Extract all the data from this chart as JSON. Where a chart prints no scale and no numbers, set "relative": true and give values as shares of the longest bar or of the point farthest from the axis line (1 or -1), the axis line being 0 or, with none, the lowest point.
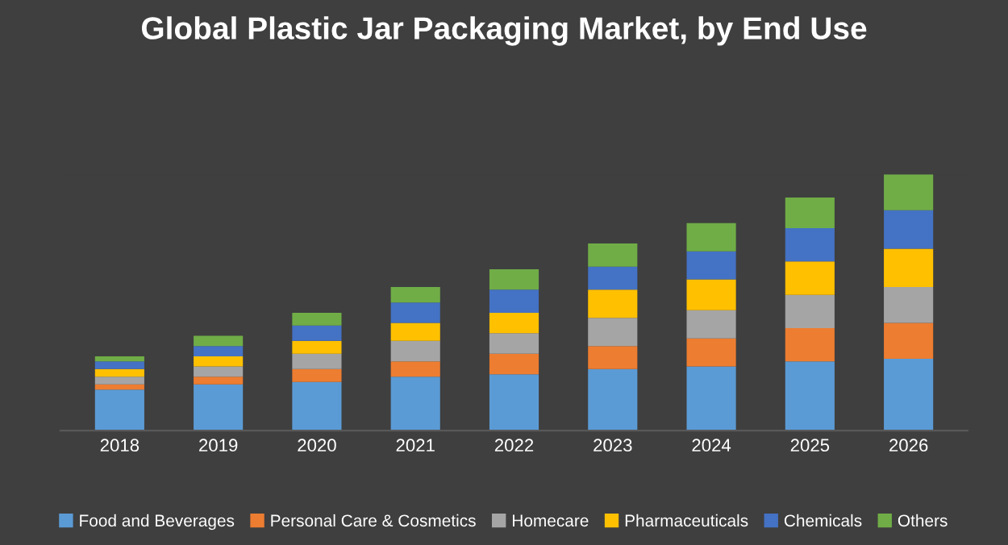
{
  "chart_data": {
    "type": "bar",
    "title": "Global Plastic Jar Packaging Market, by End Use",
    "relative": true,
    "stacked": true,
    "legend": "bottom",
    "categories": [
      "2018",
      "2019",
      "2020",
      "2021",
      "2022",
      "2023",
      "2024",
      "2025",
      "2026"
    ],
    "series": [
      {
        "name": "Food and Beverages",
        "color": "#5b9bd5",
        "values": [
          0.16,
          0.18,
          0.19,
          0.21,
          0.22,
          0.24,
          0.25,
          0.27,
          0.28
        ]
      },
      {
        "name": "Personal Care & Cosmetics",
        "color": "#ed7d31",
        "values": [
          0.02,
          0.03,
          0.05,
          0.06,
          0.08,
          0.09,
          0.11,
          0.13,
          0.14
        ]
      },
      {
        "name": "Homecare",
        "color": "#a5a5a5",
        "values": [
          0.03,
          0.04,
          0.06,
          0.08,
          0.08,
          0.11,
          0.11,
          0.13,
          0.14
        ]
      },
      {
        "name": "Pharmaceuticals",
        "color": "#ffc000",
        "values": [
          0.03,
          0.04,
          0.05,
          0.07,
          0.08,
          0.11,
          0.12,
          0.13,
          0.15
        ]
      },
      {
        "name": "Chemicals",
        "color": "#4472c4",
        "values": [
          0.03,
          0.04,
          0.06,
          0.08,
          0.09,
          0.09,
          0.11,
          0.13,
          0.15
        ]
      },
      {
        "name": "Others",
        "color": "#70ad47",
        "values": [
          0.02,
          0.04,
          0.05,
          0.06,
          0.08,
          0.09,
          0.11,
          0.12,
          0.14
        ]
      }
    ]
  }
}
